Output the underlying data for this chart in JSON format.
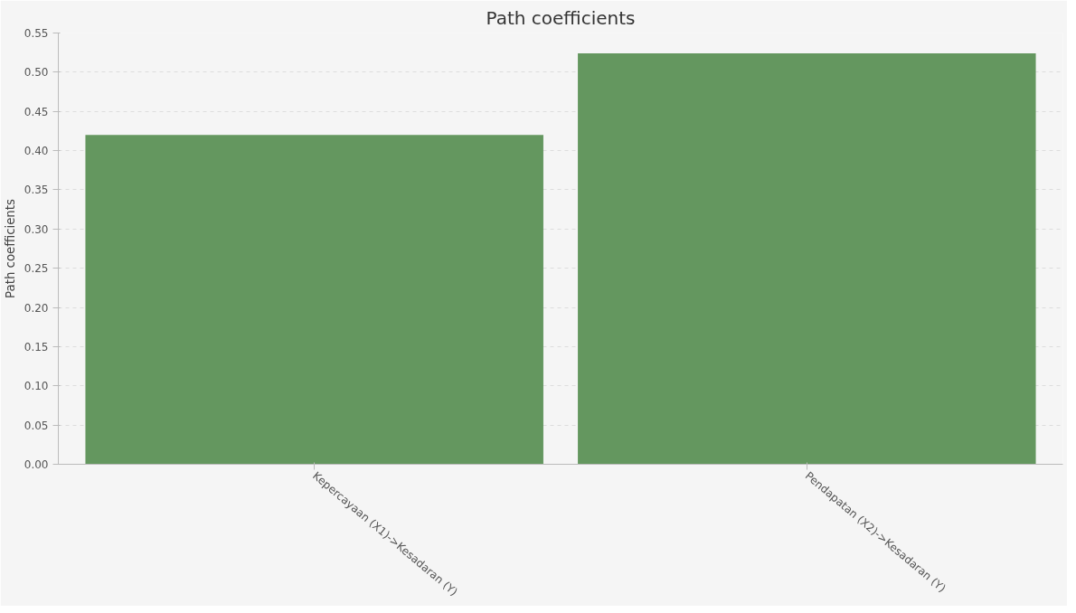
{
  "chart_data": {
    "type": "bar",
    "title": "Path coefficients",
    "ylabel": "Path coefficients",
    "categories": [
      "Kepercayaan (X1)->Kesadaran (Y)",
      "Pendapatan (X2)->Kesadaran (Y)"
    ],
    "values": [
      0.42,
      0.524
    ],
    "color": "#64975f",
    "ylim": [
      0,
      0.55
    ],
    "yticks": [
      {
        "value": 0,
        "label": "0.00"
      },
      {
        "value": 0.05,
        "label": "0.05"
      },
      {
        "value": 0.1,
        "label": "0.10"
      },
      {
        "value": 0.15,
        "label": "0.15"
      },
      {
        "value": 0.2,
        "label": "0.20"
      },
      {
        "value": 0.25,
        "label": "0.25"
      },
      {
        "value": 0.3,
        "label": "0.30"
      },
      {
        "value": 0.35,
        "label": "0.35"
      },
      {
        "value": 0.4,
        "label": "0.40"
      },
      {
        "value": 0.45,
        "label": "0.45"
      },
      {
        "value": 0.5,
        "label": "0.50"
      },
      {
        "value": 0.55,
        "label": "0.55"
      }
    ],
    "grid": "y"
  }
}
